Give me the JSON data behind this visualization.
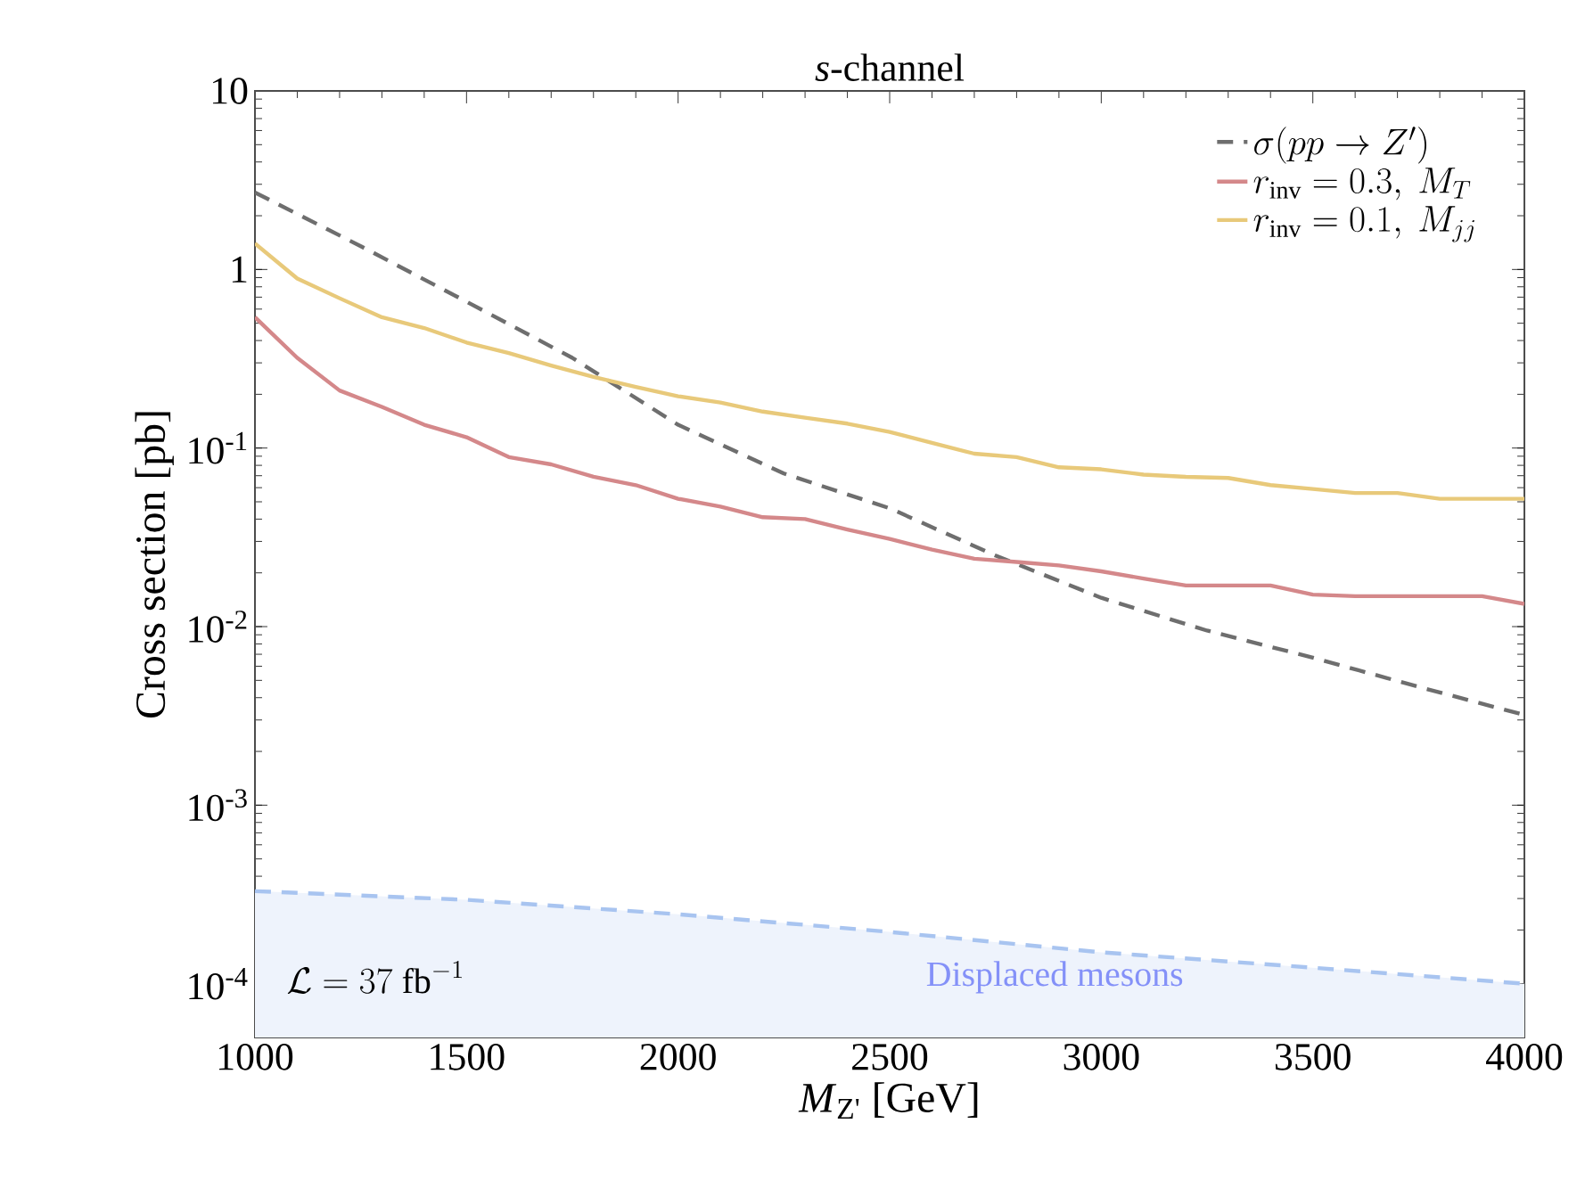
{
  "chart_data": {
    "type": "line",
    "title": "*s*-channel",
    "xlabel": "*M*$_{Z'}$ [GeV]",
    "ylabel": "Cross section [pb]",
    "log": "y",
    "grid": false,
    "legend": "top right",
    "marker": "none",
    "xlim": [
      1000,
      4000
    ],
    "xticks": [
      1000,
      1500,
      2000,
      2500,
      3000,
      3500,
      4000
    ],
    "ylim": [
      5e-05,
      10
    ],
    "yticks": [
      {
        "value": 0.0001,
        "label": "10$^{-4}$"
      },
      {
        "value": 0.001,
        "label": "10$^{-3}$"
      },
      {
        "value": 0.01,
        "label": "10$^{-2}$"
      },
      {
        "value": 0.1,
        "label": "10$^{-1}$"
      },
      1,
      10
    ],
    "annotations": [
      "\\mathcal{L} = 37\\ \\mathrm{fb}^{-1}"
    ],
    "series": [
      {
        "name": "\\sigma(pp \\to Z')",
        "color": "#6e6e6e",
        "line_style": "dashed",
        "x": [
          1000,
          1250,
          1500,
          1750,
          2000,
          2250,
          2500,
          2750,
          3000,
          3250,
          3500,
          3750,
          4000
        ],
        "values": [
          2.7,
          1.35,
          0.66,
          0.32,
          0.135,
          0.072,
          0.046,
          0.025,
          0.0145,
          0.0095,
          0.0067,
          0.0046,
          0.0032
        ]
      },
      {
        "name": "r_{\\mathrm{inv}} = 0.3,\\ M_T",
        "color": "#d4888a",
        "line_style": "solid",
        "x": [
          1000,
          1100,
          1200,
          1300,
          1400,
          1500,
          1600,
          1700,
          1800,
          1900,
          2000,
          2100,
          2200,
          2300,
          2400,
          2500,
          2600,
          2700,
          2800,
          2900,
          3000,
          3100,
          3200,
          3300,
          3400,
          3500,
          3600,
          3700,
          3800,
          3900,
          4000
        ],
        "values": [
          0.54,
          0.32,
          0.21,
          0.17,
          0.135,
          0.115,
          0.089,
          0.081,
          0.069,
          0.062,
          0.052,
          0.047,
          0.041,
          0.04,
          0.035,
          0.031,
          0.027,
          0.024,
          0.023,
          0.022,
          0.0204,
          0.0186,
          0.017,
          0.017,
          0.017,
          0.0151,
          0.0148,
          0.0148,
          0.0148,
          0.0148,
          0.0134
        ]
      },
      {
        "name": "r_{\\mathrm{inv}} = 0.1,\\ M_{jj}",
        "color": "#e8c97a",
        "line_style": "solid",
        "x": [
          1000,
          1100,
          1200,
          1300,
          1400,
          1500,
          1600,
          1700,
          1800,
          1900,
          2000,
          2100,
          2200,
          2300,
          2400,
          2500,
          2600,
          2700,
          2800,
          2900,
          3000,
          3100,
          3200,
          3300,
          3400,
          3500,
          3600,
          3700,
          3800,
          3900,
          4000
        ],
        "values": [
          1.4,
          0.89,
          0.69,
          0.54,
          0.47,
          0.39,
          0.34,
          0.29,
          0.25,
          0.22,
          0.195,
          0.18,
          0.16,
          0.148,
          0.137,
          0.123,
          0.107,
          0.093,
          0.089,
          0.078,
          0.076,
          0.071,
          0.069,
          0.068,
          0.062,
          0.059,
          0.056,
          0.056,
          0.052,
          0.052,
          0.052
        ]
      },
      {
        "name": "Displaced mesons",
        "type": "area",
        "color": "#a8c4f0",
        "line_style": "dashed",
        "x": [
          1000,
          1500,
          2000,
          2500,
          3000,
          3500,
          4000
        ],
        "values": [
          0.00033,
          0.000295,
          0.000245,
          0.000195,
          0.00015,
          0.000123,
          0.0001
        ]
      }
    ]
  }
}
